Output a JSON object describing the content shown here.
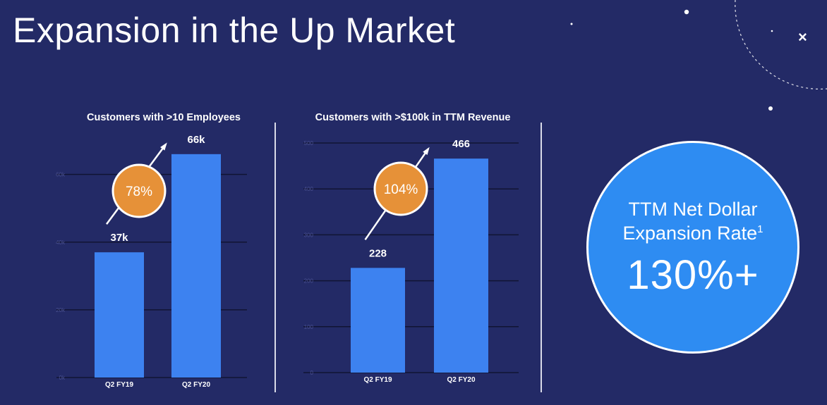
{
  "slide": {
    "title": "Expansion in the Up Market",
    "close_glyph": "×"
  },
  "chart_data": [
    {
      "type": "bar",
      "title": "Customers with >10 Employees",
      "categories": [
        "Q2 FY19",
        "Q2 FY20"
      ],
      "values": [
        37,
        66
      ],
      "data_labels": [
        "37k",
        "66k"
      ],
      "growth_label": "78%",
      "y_ticks": [
        0,
        20,
        40,
        60
      ],
      "y_tick_labels": [
        "0k",
        "20k",
        "40k",
        "60k"
      ],
      "ylim": [
        0,
        72
      ],
      "bar_color": "#3d82f0",
      "badge_color": "#e69138",
      "grid": true
    },
    {
      "type": "bar",
      "title": "Customers with >$100k in TTM Revenue",
      "categories": [
        "Q2 FY19",
        "Q2 FY20"
      ],
      "values": [
        228,
        466
      ],
      "data_labels": [
        "228",
        "466"
      ],
      "growth_label": "104%",
      "y_ticks": [
        0,
        100,
        200,
        300,
        400,
        500
      ],
      "y_tick_labels": [
        "0",
        "100",
        "200",
        "300",
        "400",
        "500"
      ],
      "ylim": [
        0,
        500
      ],
      "bar_color": "#3d82f0",
      "badge_color": "#e69138",
      "grid": true
    }
  ],
  "kpi": {
    "label_line1": "TTM Net Dollar",
    "label_line2": "Expansion Rate",
    "footnote": "1",
    "value": "130%+",
    "circle_color": "#2e8cf2"
  }
}
